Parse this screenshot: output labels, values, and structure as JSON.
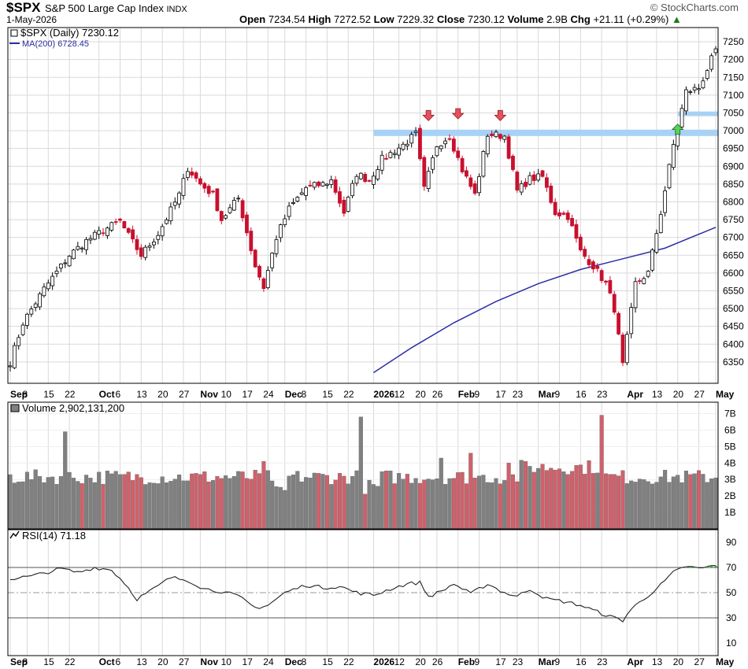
{
  "header": {
    "symbol": "$SPX",
    "name": "S&P 500 Large Cap Index",
    "exchange": "INDX",
    "date": "1-May-2026",
    "brand": "© StockCharts.com",
    "open_label": "Open",
    "open": "7234.54",
    "high_label": "High",
    "high": "7272.52",
    "low_label": "Low",
    "low": "7229.32",
    "close_label": "Close",
    "close": "7230.12",
    "volume_label": "Volume",
    "volume": "2.9B",
    "chg_label": "Chg",
    "chg": "+21.11 (+0.29%)"
  },
  "panels": {
    "price_legend": "$SPX (Daily) 7230.12",
    "ma_legend": "MA(200) 6728.45",
    "volume_legend": "Volume 2,902,131,200",
    "rsi_legend": "RSI(14) 71.18"
  },
  "colors": {
    "up": "#ffffff",
    "down": "#c8102e",
    "upvol": "#808080",
    "downvol": "#d0606a",
    "ma": "#2b2fa3",
    "band": "#a8d2f5",
    "grid": "#d9d9d9",
    "rsi_fill": "#3a9a3a"
  },
  "x_axis": {
    "labels": [
      {
        "text": "Sep",
        "i": 0,
        "bold": true
      },
      {
        "text": "8",
        "i": 4
      },
      {
        "text": "15",
        "i": 9
      },
      {
        "text": "22",
        "i": 14
      },
      {
        "text": "Oct",
        "i": 21,
        "bold": true
      },
      {
        "text": "6",
        "i": 26
      },
      {
        "text": "13",
        "i": 31
      },
      {
        "text": "20",
        "i": 36
      },
      {
        "text": "27",
        "i": 41
      },
      {
        "text": "Nov",
        "i": 45,
        "bold": true
      },
      {
        "text": "10",
        "i": 51
      },
      {
        "text": "17",
        "i": 56
      },
      {
        "text": "24",
        "i": 61
      },
      {
        "text": "Dec",
        "i": 65,
        "bold": true
      },
      {
        "text": "8",
        "i": 70
      },
      {
        "text": "15",
        "i": 75
      },
      {
        "text": "22",
        "i": 80
      },
      {
        "text": "2026",
        "i": 86,
        "bold": true
      },
      {
        "text": "12",
        "i": 92
      },
      {
        "text": "20",
        "i": 97
      },
      {
        "text": "26",
        "i": 101
      },
      {
        "text": "Feb",
        "i": 106,
        "bold": true
      },
      {
        "text": "9",
        "i": 111
      },
      {
        "text": "17",
        "i": 116
      },
      {
        "text": "23",
        "i": 120
      },
      {
        "text": "Mar",
        "i": 125,
        "bold": true
      },
      {
        "text": "9",
        "i": 130
      },
      {
        "text": "16",
        "i": 135
      },
      {
        "text": "23",
        "i": 140
      },
      {
        "text": "Apr",
        "i": 146,
        "bold": true
      },
      {
        "text": "13",
        "i": 153
      },
      {
        "text": "20",
        "i": 158
      },
      {
        "text": "27",
        "i": 163
      },
      {
        "text": "May",
        "i": 167,
        "bold": true
      }
    ]
  },
  "chart_data": {
    "type": "candlestick",
    "title": "$SPX (Daily) 7230.12",
    "price_ylim": [
      6290,
      7290
    ],
    "price_ticks": [
      6350,
      6400,
      6450,
      6500,
      6550,
      6600,
      6650,
      6700,
      6750,
      6800,
      6850,
      6900,
      6950,
      7000,
      7050,
      7100,
      7150,
      7200,
      7250
    ],
    "volume_ylim": [
      0,
      7500000000
    ],
    "volume_ticks": [
      "1B",
      "2B",
      "3B",
      "4B",
      "5B",
      "6B",
      "7B"
    ],
    "rsi_ylim": [
      0,
      100
    ],
    "rsi_ticks": [
      10,
      30,
      50,
      70,
      90
    ],
    "ma200": [
      [
        86,
        6320
      ],
      [
        95,
        6390
      ],
      [
        105,
        6460
      ],
      [
        115,
        6520
      ],
      [
        125,
        6570
      ],
      [
        135,
        6610
      ],
      [
        145,
        6640
      ],
      [
        155,
        6670
      ],
      [
        167,
        6728.45
      ]
    ],
    "annotations": {
      "support_bands": [
        {
          "from": 86,
          "to": 168,
          "low": 6985,
          "high": 7003
        },
        {
          "from": 158,
          "to": 168,
          "low": 7041,
          "high": 7054
        }
      ],
      "down_arrows": [
        {
          "i": 99,
          "value": 7035
        },
        {
          "i": 106,
          "value": 7040
        },
        {
          "i": 116,
          "value": 7035
        }
      ],
      "up_arrows": [
        {
          "i": 158,
          "value": 7012
        }
      ]
    },
    "waypoints": [
      [
        0,
        6350
      ],
      [
        3,
        6460
      ],
      [
        8,
        6555
      ],
      [
        14,
        6650
      ],
      [
        18,
        6690
      ],
      [
        22,
        6720
      ],
      [
        26,
        6745
      ],
      [
        28,
        6705
      ],
      [
        31,
        6650
      ],
      [
        35,
        6710
      ],
      [
        40,
        6820
      ],
      [
        42,
        6895
      ],
      [
        45,
        6850
      ],
      [
        48,
        6820
      ],
      [
        50,
        6750
      ],
      [
        54,
        6810
      ],
      [
        58,
        6620
      ],
      [
        60,
        6560
      ],
      [
        63,
        6700
      ],
      [
        66,
        6780
      ],
      [
        70,
        6840
      ],
      [
        74,
        6850
      ],
      [
        76,
        6860
      ],
      [
        79,
        6770
      ],
      [
        82,
        6880
      ],
      [
        85,
        6860
      ],
      [
        88,
        6920
      ],
      [
        93,
        6960
      ],
      [
        96,
        6990
      ],
      [
        98,
        6835
      ],
      [
        101,
        6960
      ],
      [
        104,
        6985
      ],
      [
        107,
        6890
      ],
      [
        110,
        6820
      ],
      [
        113,
        6990
      ],
      [
        117,
        6985
      ],
      [
        120,
        6830
      ],
      [
        123,
        6865
      ],
      [
        126,
        6870
      ],
      [
        129,
        6770
      ],
      [
        132,
        6760
      ],
      [
        135,
        6660
      ],
      [
        138,
        6620
      ],
      [
        141,
        6570
      ],
      [
        143,
        6500
      ],
      [
        145,
        6340
      ],
      [
        148,
        6570
      ],
      [
        151,
        6600
      ],
      [
        154,
        6770
      ],
      [
        157,
        6960
      ],
      [
        160,
        7110
      ],
      [
        163,
        7120
      ],
      [
        166,
        7200
      ],
      [
        167,
        7230
      ]
    ],
    "volume_spikes": [
      {
        "i": 13,
        "value": 5.9
      },
      {
        "i": 60,
        "value": 4.1
      },
      {
        "i": 83,
        "value": 6.8
      },
      {
        "i": 140,
        "value": 6.9
      },
      {
        "i": 118,
        "value": 4.0
      },
      {
        "i": 102,
        "value": 4.3
      },
      {
        "i": 109,
        "value": 4.6
      }
    ],
    "rsi_waypoints": [
      [
        0,
        61
      ],
      [
        5,
        63
      ],
      [
        12,
        69
      ],
      [
        16,
        66
      ],
      [
        20,
        70
      ],
      [
        24,
        68
      ],
      [
        27,
        58
      ],
      [
        30,
        45
      ],
      [
        34,
        53
      ],
      [
        38,
        62
      ],
      [
        42,
        60
      ],
      [
        46,
        53
      ],
      [
        50,
        51
      ],
      [
        54,
        47
      ],
      [
        58,
        38
      ],
      [
        61,
        40
      ],
      [
        65,
        50
      ],
      [
        70,
        56
      ],
      [
        74,
        54
      ],
      [
        78,
        55
      ],
      [
        82,
        50
      ],
      [
        86,
        48
      ],
      [
        90,
        53
      ],
      [
        94,
        57
      ],
      [
        97,
        58
      ],
      [
        99,
        47
      ],
      [
        102,
        51
      ],
      [
        105,
        57
      ],
      [
        109,
        49
      ],
      [
        113,
        57
      ],
      [
        117,
        50
      ],
      [
        120,
        47
      ],
      [
        123,
        53
      ],
      [
        127,
        45
      ],
      [
        131,
        43
      ],
      [
        135,
        40
      ],
      [
        138,
        36
      ],
      [
        142,
        31
      ],
      [
        145,
        28
      ],
      [
        147,
        37
      ],
      [
        150,
        45
      ],
      [
        154,
        56
      ],
      [
        157,
        66
      ],
      [
        160,
        71
      ],
      [
        163,
        69
      ],
      [
        166,
        71
      ],
      [
        167,
        71.18
      ]
    ]
  }
}
